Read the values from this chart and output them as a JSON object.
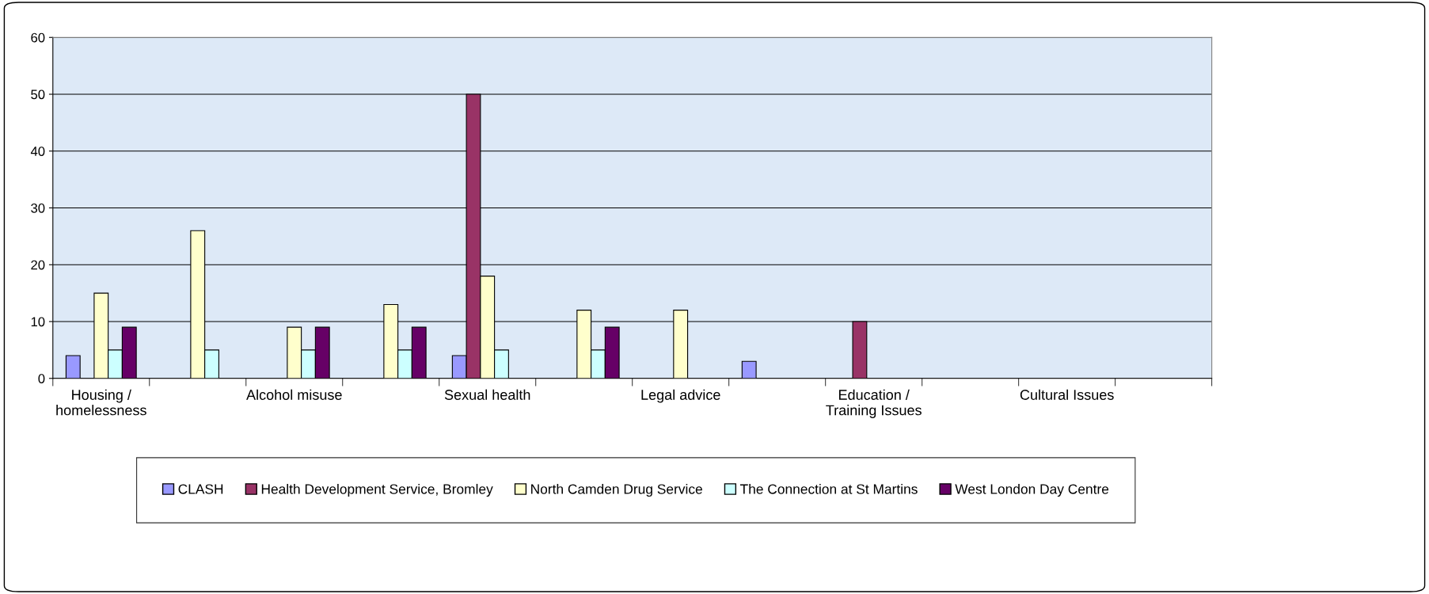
{
  "chart_data": {
    "type": "bar",
    "categories": [
      "Housing /\nhomelessness",
      null,
      "Alcohol misuse",
      null,
      "Sexual health",
      null,
      "Legal advice",
      null,
      "Education /\nTraining Issues",
      null,
      "Cultural Issues",
      null
    ],
    "series": [
      {
        "name": "CLASH",
        "color": "#9999ff",
        "values": [
          4,
          null,
          null,
          null,
          4,
          null,
          null,
          3,
          null,
          null,
          null,
          null
        ]
      },
      {
        "name": "Health Development Service, Bromley",
        "color": "#993366",
        "values": [
          null,
          null,
          null,
          null,
          50,
          null,
          null,
          null,
          10,
          null,
          null,
          null
        ]
      },
      {
        "name": "North Camden Drug Service",
        "color": "#ffffcc",
        "values": [
          15,
          26,
          9,
          13,
          18,
          12,
          12,
          null,
          null,
          null,
          null,
          null
        ]
      },
      {
        "name": "The Connection at St Martins",
        "color": "#ccffff",
        "values": [
          5,
          5,
          5,
          5,
          5,
          5,
          null,
          null,
          null,
          null,
          null,
          null
        ]
      },
      {
        "name": "West London Day Centre",
        "color": "#660066",
        "values": [
          9,
          null,
          9,
          9,
          null,
          9,
          null,
          null,
          null,
          null,
          null,
          null
        ]
      }
    ],
    "ylim": [
      0,
      60
    ],
    "yticks": [
      0,
      10,
      20,
      30,
      40,
      50,
      60
    ],
    "grid": "y",
    "legend": "bottom"
  }
}
